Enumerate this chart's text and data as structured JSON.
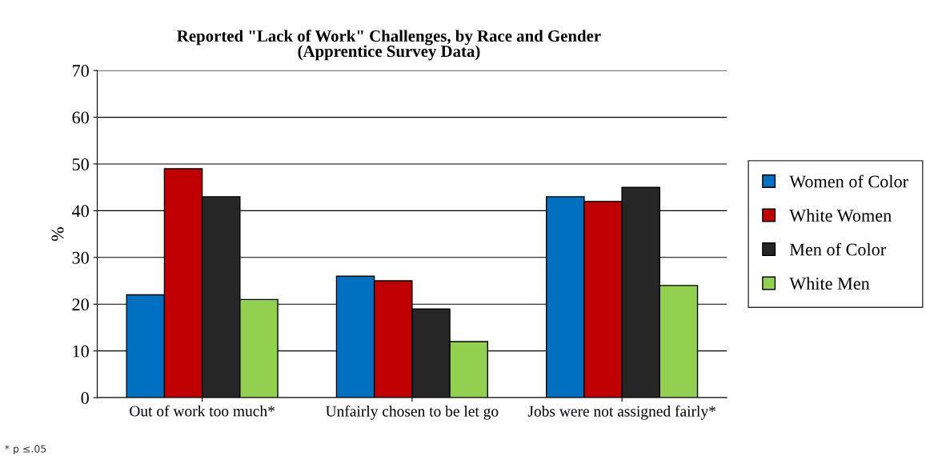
{
  "chart_data": {
    "type": "bar",
    "title": "Reported \"Lack of Work\" Challenges, by Race and Gender\n(Apprentice Survey Data)",
    "ylabel": "%",
    "categories": [
      "Out of work too much*",
      "Unfairly chosen to be let go",
      "Jobs were not assigned fairly*"
    ],
    "series": [
      {
        "name": "Women of Color",
        "color": "#0070c0",
        "values": [
          22,
          26,
          43
        ]
      },
      {
        "name": "White Women",
        "color": "#c00000",
        "values": [
          49,
          25,
          42
        ]
      },
      {
        "name": "Men of Color",
        "color": "#262626",
        "values": [
          43,
          19,
          45
        ]
      },
      {
        "name": "White Men",
        "color": "#92d050",
        "values": [
          21,
          12,
          24
        ]
      }
    ],
    "ylim": [
      0,
      70
    ],
    "yticks": [
      0,
      10,
      20,
      30,
      40,
      50,
      60,
      70
    ],
    "grid": "y",
    "legend": "right",
    "annotations": [
      "* p ≤.05"
    ]
  }
}
